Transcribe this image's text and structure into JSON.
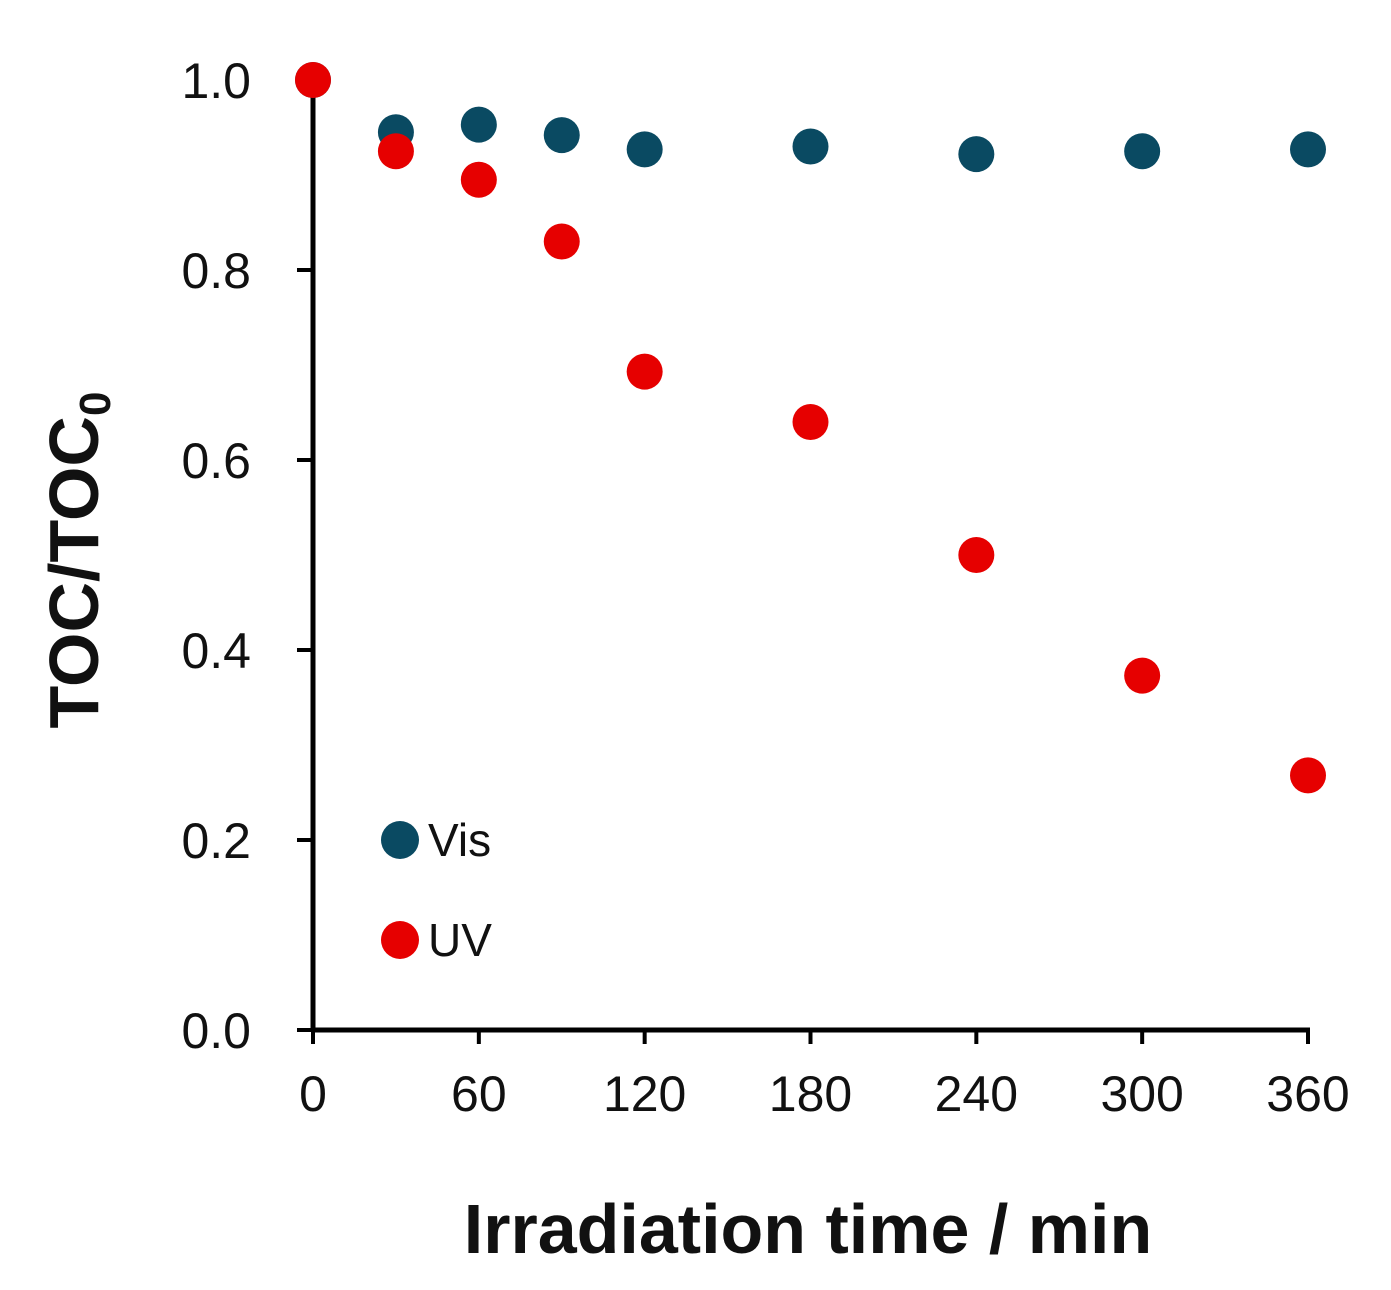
{
  "chart_data": {
    "type": "scatter",
    "title": "",
    "xlabel": "Irradiation time / min",
    "ylabel": {
      "main": "TOC/TOC",
      "subscript": "0"
    },
    "xlim": [
      0,
      360
    ],
    "ylim": [
      0.0,
      1.0
    ],
    "xticks": [
      "0",
      "60",
      "120",
      "180",
      "240",
      "300",
      "360"
    ],
    "yticks": [
      "0.0",
      "0.2",
      "0.4",
      "0.6",
      "0.8",
      "1.0"
    ],
    "grid": false,
    "legend_position": "bottom-left",
    "series": [
      {
        "name": "Vis",
        "color": "#0a4a62",
        "x": [
          0,
          30,
          60,
          90,
          120,
          180,
          240,
          300,
          360
        ],
        "y": [
          1.0,
          0.945,
          0.953,
          0.942,
          0.927,
          0.93,
          0.922,
          0.925,
          0.927
        ]
      },
      {
        "name": "UV",
        "color": "#e60000",
        "x": [
          0,
          30,
          60,
          90,
          120,
          180,
          240,
          300,
          360
        ],
        "y": [
          1.0,
          0.925,
          0.895,
          0.83,
          0.693,
          0.64,
          0.5,
          0.373,
          0.268
        ]
      }
    ]
  }
}
